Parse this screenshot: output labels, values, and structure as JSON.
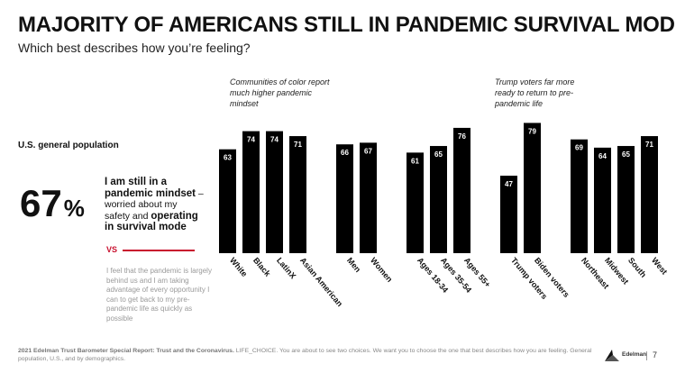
{
  "title": "MAJORITY OF AMERICANS STILL IN PANDEMIC SURVIVAL MODE",
  "subtitle": "Which best describes how you’re feeling?",
  "annotations": {
    "left": "Communities of color report much higher pandemic mindset",
    "right": "Trump voters far more ready to return to pre-pandemic life"
  },
  "summary": {
    "population_label": "U.S. general population",
    "value": "67",
    "percent_symbol": "%",
    "statement_bold_1": "I am still in a pandemic mindset",
    "statement_plain": " – worried about my safety and ",
    "statement_bold_2": "operating in survival mode",
    "vs_label": "VS",
    "alternative": "I feel that the pandemic is largely behind us and I am taking advantage of every opportunity I can to get back to my pre-pandemic life as quickly as possible"
  },
  "chart_data": {
    "type": "bar",
    "categories": [
      "White",
      "Black",
      "LatinX",
      "Asian American",
      "Men",
      "Women",
      "Ages 18-34",
      "Ages 35-54",
      "Ages 55+",
      "Trump voters",
      "Biden voters",
      "Northeast",
      "Midwest",
      "South",
      "West"
    ],
    "groups": [
      [
        0,
        1,
        2,
        3
      ],
      [
        4,
        5
      ],
      [
        6,
        7,
        8
      ],
      [
        9,
        10
      ],
      [
        11,
        12,
        13,
        14
      ]
    ],
    "values": [
      63,
      74,
      74,
      71,
      66,
      67,
      61,
      65,
      76,
      47,
      79,
      69,
      64,
      65,
      71
    ],
    "ylim": [
      0,
      80
    ],
    "grid": false,
    "bar_color": "#000000"
  },
  "footer": {
    "source_bold": "2021 Edelman Trust Barometer Special Report: Trust and the Coronavirus.",
    "source_text": " LIFE_CHOICE. You are about to see two choices. We want you to choose the one that best describes how you are feeling. General population, U.S., and by demographics."
  },
  "branding": {
    "logo_text": "Edelman",
    "logo_icon": "edelman-logo-icon",
    "page_number": "7"
  }
}
